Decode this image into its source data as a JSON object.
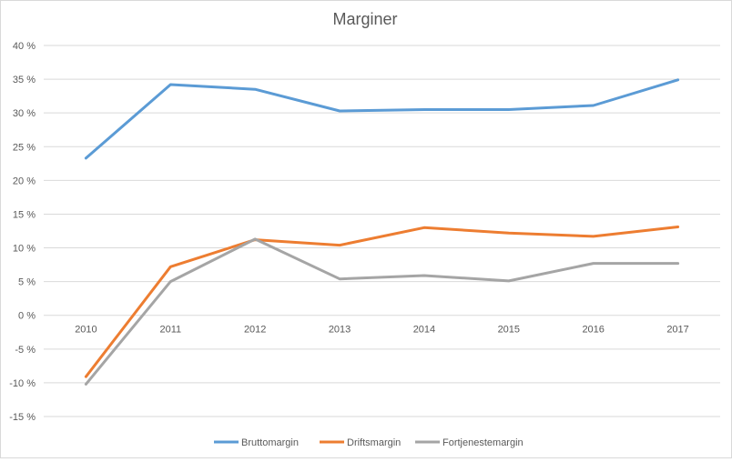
{
  "chart_data": {
    "type": "line",
    "title": "Marginer",
    "xlabel": "",
    "ylabel": "",
    "categories": [
      "2010",
      "2011",
      "2012",
      "2013",
      "2014",
      "2015",
      "2016",
      "2017"
    ],
    "ylim": [
      -15,
      40
    ],
    "yticks": [
      40,
      35,
      30,
      25,
      20,
      15,
      10,
      5,
      0,
      -5,
      -10,
      -15
    ],
    "ytick_labels": [
      "40 %",
      "35 %",
      "30 %",
      "25 %",
      "20 %",
      "15 %",
      "10 %",
      "5 %",
      "0 %",
      "-5 %",
      "-10 %",
      "-15 %"
    ],
    "grid": true,
    "legend": "bottom",
    "series": [
      {
        "name": "Bruttomargin",
        "color": "#5b9bd5",
        "values": [
          23.3,
          34.2,
          33.5,
          30.3,
          30.5,
          30.5,
          31.1,
          34.9
        ]
      },
      {
        "name": "Driftsmargin",
        "color": "#ed7d31",
        "values": [
          -9.1,
          7.2,
          11.2,
          10.4,
          13.0,
          12.2,
          11.7,
          13.1
        ]
      },
      {
        "name": "Fortjenestemargin",
        "color": "#a5a5a5",
        "values": [
          -10.2,
          5.0,
          11.3,
          5.4,
          5.9,
          5.1,
          7.7,
          7.7
        ]
      }
    ]
  }
}
